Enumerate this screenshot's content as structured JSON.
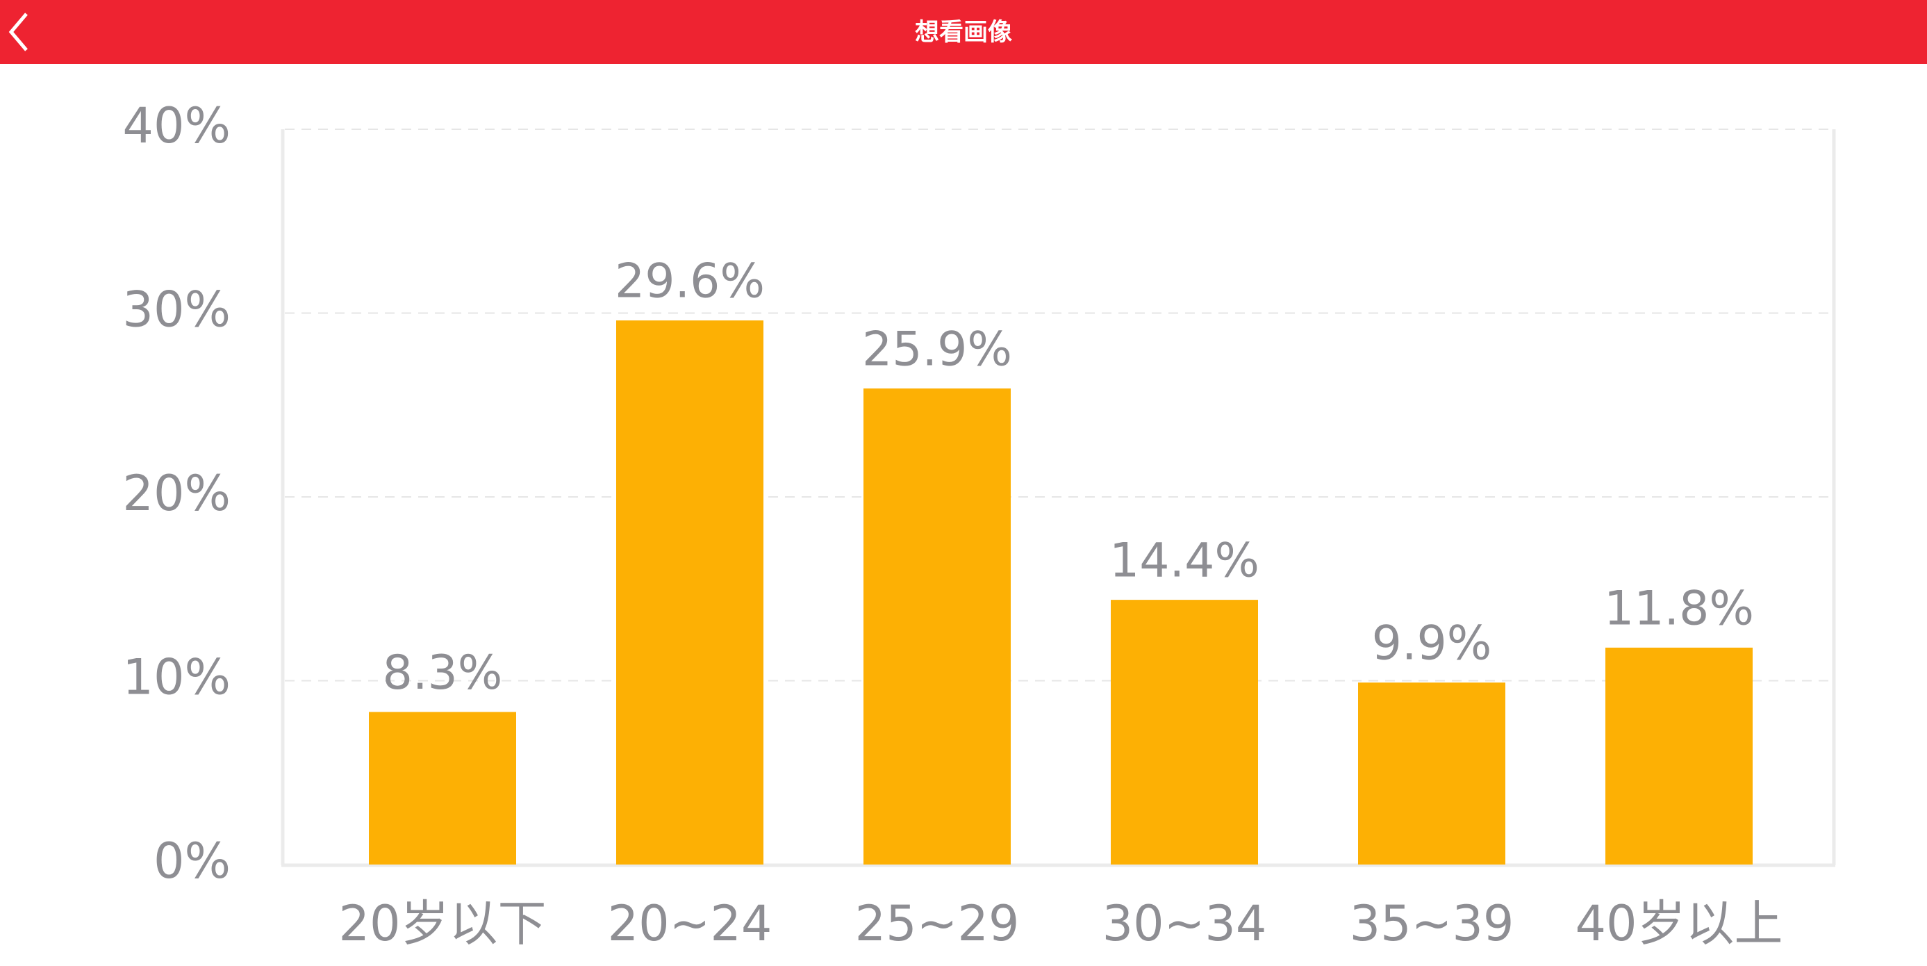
{
  "chart_data": {
    "type": "bar",
    "title": "想看画像",
    "categories": [
      "20岁以下",
      "20~24",
      "25~29",
      "30~34",
      "35~39",
      "40岁以上"
    ],
    "values": [
      8.3,
      29.6,
      25.9,
      14.4,
      9.9,
      11.8
    ],
    "value_labels": [
      "8.3%",
      "29.6%",
      "25.9%",
      "14.4%",
      "9.9%",
      "11.8%"
    ],
    "color": "#fdb004",
    "ylim": [
      0,
      40
    ],
    "yticks": [
      {
        "value": 0,
        "label": "0%"
      },
      {
        "value": 10,
        "label": "10%"
      },
      {
        "value": 20,
        "label": "20%"
      },
      {
        "value": 30,
        "label": "30%"
      },
      {
        "value": 40,
        "label": "40%"
      }
    ],
    "grid": true
  }
}
